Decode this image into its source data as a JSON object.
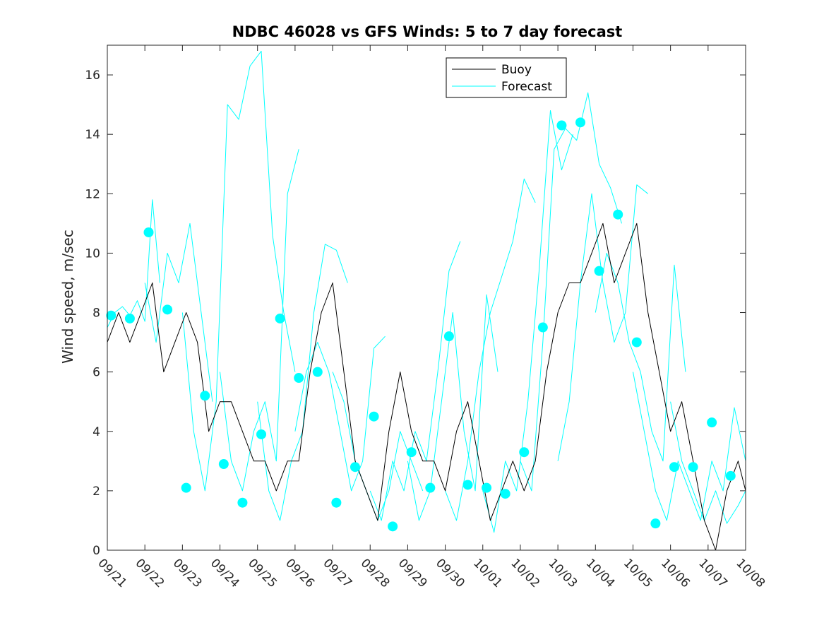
{
  "chart_data": {
    "type": "line",
    "title": "NDBC 46028 vs GFS Winds: 5 to 7 day forecast",
    "xlabel": "",
    "ylabel": "Wind speed, m/sec",
    "xlim": [
      0,
      17
    ],
    "ylim": [
      0,
      17
    ],
    "x_ticks": [
      0,
      1,
      2,
      3,
      4,
      5,
      6,
      7,
      8,
      9,
      10,
      11,
      12,
      13,
      14,
      15,
      16,
      17
    ],
    "x_tick_labels": [
      "09/21",
      "09/22",
      "09/23",
      "09/24",
      "09/25",
      "09/26",
      "09/27",
      "09/28",
      "09/29",
      "09/30",
      "10/01",
      "10/02",
      "10/03",
      "10/04",
      "10/05",
      "10/06",
      "10/07",
      "10/08"
    ],
    "y_ticks": [
      0,
      2,
      4,
      6,
      8,
      10,
      12,
      14,
      16
    ],
    "y_tick_labels": [
      "0",
      "2",
      "4",
      "6",
      "8",
      "10",
      "12",
      "14",
      "16"
    ],
    "legend": {
      "position": "top-center",
      "entries": [
        {
          "label": "Buoy",
          "color": "#000000"
        },
        {
          "label": "Forecast",
          "color": "#00ffff"
        }
      ]
    },
    "colors": {
      "buoy": "#000000",
      "forecast": "#00ffff",
      "marker": "#00ffff"
    },
    "series": [
      {
        "name": "Buoy",
        "x": [
          0,
          0.3,
          0.6,
          0.9,
          1.2,
          1.5,
          1.8,
          2.1,
          2.4,
          2.7,
          3.0,
          3.3,
          3.6,
          3.9,
          4.2,
          4.5,
          4.8,
          5.1,
          5.4,
          5.7,
          6.0,
          6.3,
          6.6,
          6.9,
          7.2,
          7.5,
          7.8,
          8.1,
          8.4,
          8.7,
          9.0,
          9.3,
          9.6,
          9.9,
          10.2,
          10.5,
          10.8,
          11.1,
          11.4,
          11.7,
          12.0,
          12.3,
          12.6,
          12.9,
          13.2,
          13.5,
          13.8,
          14.1,
          14.4,
          14.7,
          15.0,
          15.3,
          15.6,
          15.9,
          16.2,
          16.5,
          16.8,
          17.0
        ],
        "y": [
          7,
          8,
          7,
          8,
          9,
          6,
          7,
          8,
          7,
          4,
          5,
          5,
          4,
          3,
          3,
          2,
          3,
          3,
          6,
          8,
          9,
          6,
          3,
          2,
          1,
          4,
          6,
          4,
          3,
          3,
          2,
          4,
          5,
          3,
          1,
          2,
          3,
          2,
          3,
          6,
          8,
          9,
          9,
          10,
          11,
          9,
          10,
          11,
          8,
          6,
          4,
          5,
          3,
          1,
          0,
          2,
          3,
          2
        ]
      },
      {
        "name": "Forecast run 1",
        "x": [
          0,
          0.2,
          0.4,
          0.6,
          0.8,
          1.0,
          1.2,
          1.4
        ],
        "y": [
          7.5,
          8,
          8.2,
          7.9,
          8.4,
          7.7,
          11.8,
          9
        ]
      },
      {
        "name": "Forecast run 2",
        "x": [
          1.0,
          1.3,
          1.6,
          1.9,
          2.2,
          2.5,
          2.8
        ],
        "y": [
          9,
          7,
          10,
          9,
          11,
          8,
          5
        ]
      },
      {
        "name": "Forecast run 3",
        "x": [
          2.0,
          2.3,
          2.6,
          2.9,
          3.2,
          3.5,
          3.8,
          4.1,
          4.4,
          4.7,
          5.0
        ],
        "y": [
          8,
          4,
          2,
          5,
          15,
          14.5,
          16.3,
          16.8,
          10.6,
          8,
          6
        ]
      },
      {
        "name": "Forecast run 4",
        "x": [
          3.0,
          3.3,
          3.6,
          3.9,
          4.2,
          4.5,
          4.8,
          5.1
        ],
        "y": [
          6,
          3,
          2,
          4,
          5,
          3,
          12,
          13.5
        ]
      },
      {
        "name": "Forecast run 5",
        "x": [
          4.0,
          4.3,
          4.6,
          4.9,
          5.2,
          5.5,
          5.8,
          6.1,
          6.4
        ],
        "y": [
          5,
          2,
          1,
          3,
          4,
          8,
          10.3,
          10.1,
          9
        ]
      },
      {
        "name": "Forecast run 6",
        "x": [
          5.0,
          5.3,
          5.6,
          5.9,
          6.2,
          6.5,
          6.8,
          7.1,
          7.4
        ],
        "y": [
          4,
          6,
          7,
          6,
          4,
          2,
          3,
          6.8,
          7.2
        ]
      },
      {
        "name": "Forecast run 7",
        "x": [
          6.0,
          6.3,
          6.6,
          6.9,
          7.2,
          7.5,
          7.8,
          8.1,
          8.4
        ],
        "y": [
          6,
          5,
          3,
          2,
          1,
          2,
          4,
          3,
          2
        ]
      },
      {
        "name": "Forecast run 8",
        "x": [
          7.0,
          7.3,
          7.6,
          7.9,
          8.2,
          8.5,
          8.8,
          9.1,
          9.4
        ],
        "y": [
          2,
          1,
          3,
          2,
          4,
          3,
          6,
          9.4,
          10.4
        ]
      },
      {
        "name": "Forecast run 9",
        "x": [
          8.0,
          8.3,
          8.6,
          8.9,
          9.2,
          9.5,
          9.8,
          10.1,
          10.4
        ],
        "y": [
          3,
          1,
          2,
          5,
          8,
          4,
          2,
          8.6,
          6
        ]
      },
      {
        "name": "Forecast run 10",
        "x": [
          9.0,
          9.3,
          9.6,
          9.9,
          10.2,
          10.5,
          10.8,
          11.1,
          11.4
        ],
        "y": [
          2,
          1,
          3,
          6,
          8,
          9.2,
          10.4,
          12.5,
          11.7
        ]
      },
      {
        "name": "Forecast run 11",
        "x": [
          10.0,
          10.3,
          10.6,
          10.9,
          11.2,
          11.5,
          11.8,
          12.1,
          12.4
        ],
        "y": [
          2,
          0.6,
          3,
          2,
          5,
          9.4,
          14.8,
          12.8,
          14
        ]
      },
      {
        "name": "Forecast run 12",
        "x": [
          11.0,
          11.3,
          11.6,
          11.9,
          12.2,
          12.5,
          12.8,
          13.1,
          13.4,
          13.7
        ],
        "y": [
          3,
          2,
          7,
          13.5,
          14.2,
          13.8,
          15.4,
          13,
          12.2,
          11
        ]
      },
      {
        "name": "Forecast run 13",
        "x": [
          12.0,
          12.3,
          12.6,
          12.9,
          13.2,
          13.5,
          13.8,
          14.1,
          14.4
        ],
        "y": [
          3,
          5,
          9,
          12,
          9,
          7,
          8,
          12.3,
          12
        ]
      },
      {
        "name": "Forecast run 14",
        "x": [
          13.0,
          13.3,
          13.6,
          13.9,
          14.2,
          14.5,
          14.8,
          15.1,
          15.4
        ],
        "y": [
          8,
          10,
          9,
          7,
          6,
          4,
          3,
          9.6,
          6
        ]
      },
      {
        "name": "Forecast run 15",
        "x": [
          14.0,
          14.3,
          14.6,
          14.9,
          15.2,
          15.5,
          15.8,
          16.1,
          16.4,
          16.7,
          17.0
        ],
        "y": [
          6,
          4,
          2,
          1,
          3,
          2,
          1,
          3,
          2,
          4.8,
          3
        ]
      },
      {
        "name": "Forecast run 16",
        "x": [
          15.0,
          15.3,
          15.6,
          15.9,
          16.2,
          16.5,
          16.8,
          17.0
        ],
        "y": [
          5,
          3,
          2,
          1,
          2,
          0.9,
          1.5,
          2
        ]
      }
    ],
    "markers": {
      "name": "Forecast (verifying point)",
      "x": [
        0.1,
        0.6,
        1.1,
        1.6,
        2.1,
        2.6,
        3.1,
        3.6,
        4.1,
        4.6,
        5.1,
        5.6,
        6.1,
        6.6,
        7.1,
        7.6,
        8.1,
        8.6,
        9.1,
        9.6,
        10.1,
        10.6,
        11.1,
        11.6,
        12.1,
        12.6,
        13.1,
        13.6,
        14.1,
        14.6,
        15.1,
        15.6,
        16.1,
        16.6
      ],
      "y": [
        7.9,
        7.8,
        10.7,
        8.1,
        2.1,
        5.2,
        2.9,
        1.6,
        3.9,
        7.8,
        5.8,
        6.0,
        1.6,
        2.8,
        4.5,
        0.8,
        3.3,
        2.1,
        7.2,
        2.2,
        2.1,
        1.9,
        3.3,
        7.5,
        14.3,
        14.4,
        9.4,
        11.3,
        7.0,
        0.9,
        2.8,
        2.8,
        4.3,
        2.5
      ]
    }
  }
}
